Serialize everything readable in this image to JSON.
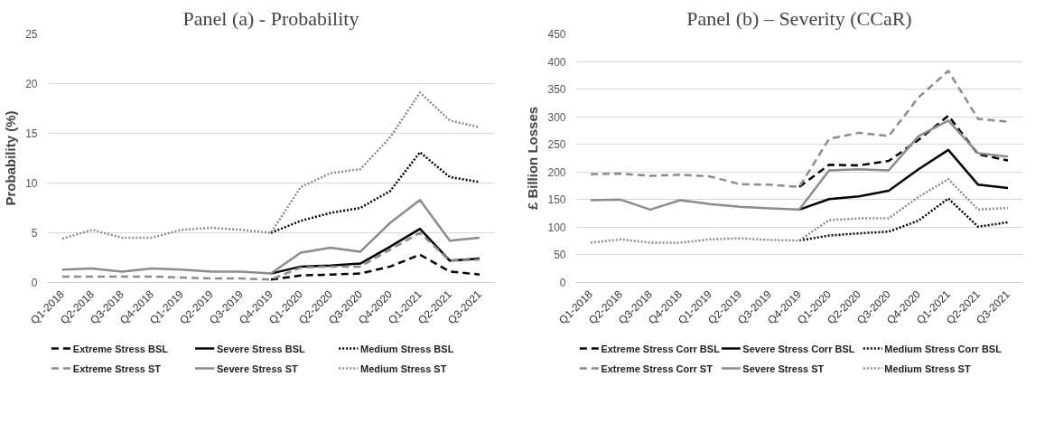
{
  "chart_data": [
    {
      "type": "line",
      "title": "Panel (a) - Probability",
      "ylabel": "Probability (%)",
      "categories": [
        "Q1-2018",
        "Q2-2018",
        "Q3-2018",
        "Q4-2018",
        "Q1-2019",
        "Q2-2019",
        "Q3-2019",
        "Q4-2019",
        "Q1-2020",
        "Q2-2020",
        "Q3-2020",
        "Q4-2020",
        "Q1-2021",
        "Q2-2021",
        "Q3-2021"
      ],
      "ylim": [
        0,
        25
      ],
      "yticks": [
        0,
        5,
        10,
        15,
        20,
        25
      ],
      "grid": "y",
      "legend": "bottom",
      "series": [
        {
          "name": "Extreme Stress BSL",
          "color": "#000000",
          "line_style": "dashed",
          "values": [
            null,
            null,
            null,
            null,
            null,
            null,
            null,
            0.3,
            0.7,
            0.8,
            0.9,
            1.6,
            2.8,
            1.1,
            0.8
          ]
        },
        {
          "name": "Severe Stress BSL",
          "color": "#000000",
          "line_style": "solid",
          "values": [
            null,
            null,
            null,
            null,
            null,
            null,
            null,
            0.9,
            1.6,
            1.7,
            1.9,
            3.6,
            5.4,
            2.2,
            2.4
          ]
        },
        {
          "name": "Medium Stress BSL",
          "color": "#000000",
          "line_style": "dotted",
          "values": [
            null,
            null,
            null,
            null,
            null,
            null,
            null,
            5.0,
            6.2,
            7.0,
            7.5,
            9.2,
            13.1,
            10.6,
            10.1
          ]
        },
        {
          "name": "Extreme Stress ST",
          "color": "#8c8c8c",
          "line_style": "dashed",
          "values": [
            0.6,
            0.6,
            0.6,
            0.6,
            0.5,
            0.4,
            0.4,
            0.3,
            1.5,
            1.6,
            1.6,
            3.3,
            5.0,
            2.2,
            2.3
          ]
        },
        {
          "name": "Severe Stress ST",
          "color": "#8c8c8c",
          "line_style": "solid",
          "values": [
            1.3,
            1.4,
            1.1,
            1.4,
            1.3,
            1.1,
            1.1,
            0.9,
            3.0,
            3.5,
            3.1,
            6.0,
            8.3,
            4.2,
            4.5
          ]
        },
        {
          "name": "Medium Stress ST",
          "color": "#8c8c8c",
          "line_style": "dotted",
          "values": [
            4.4,
            5.3,
            4.5,
            4.5,
            5.3,
            5.5,
            5.3,
            5.0,
            9.6,
            11.0,
            11.4,
            14.6,
            19.1,
            16.3,
            15.6
          ]
        }
      ]
    },
    {
      "type": "line",
      "title": "Panel (b) – Severity (CCaR)",
      "ylabel": "£ Billion Losses",
      "categories": [
        "Q1-2018",
        "Q2-2018",
        "Q3-2018",
        "Q4-2018",
        "Q1-2019",
        "Q2-2019",
        "Q3-2019",
        "Q4-2019",
        "Q1-2020",
        "Q2-2020",
        "Q3-2020",
        "Q4-2020",
        "Q1-2021",
        "Q2-2021",
        "Q3-2021"
      ],
      "ylim": [
        0,
        450
      ],
      "yticks": [
        0,
        50,
        100,
        150,
        200,
        250,
        300,
        350,
        400,
        450
      ],
      "grid": "y",
      "legend": "bottom",
      "series": [
        {
          "name": "Extreme Stress Corr BSL",
          "color": "#000000",
          "line_style": "dashed",
          "values": [
            null,
            null,
            null,
            null,
            null,
            null,
            null,
            173,
            213,
            212,
            220,
            258,
            302,
            232,
            221
          ]
        },
        {
          "name": "Severe Stress Corr BSL",
          "color": "#000000",
          "line_style": "solid",
          "values": [
            null,
            null,
            null,
            null,
            null,
            null,
            null,
            132,
            151,
            156,
            166,
            205,
            240,
            177,
            171
          ]
        },
        {
          "name": "Medium Stress Corr BSL",
          "color": "#000000",
          "line_style": "dotted",
          "values": [
            null,
            null,
            null,
            null,
            null,
            null,
            null,
            76,
            85,
            89,
            92,
            112,
            152,
            101,
            109
          ]
        },
        {
          "name": "Extreme Stress Corr ST",
          "color": "#8c8c8c",
          "line_style": "dashed",
          "values": [
            196,
            197,
            193,
            195,
            192,
            178,
            177,
            173,
            260,
            271,
            265,
            335,
            383,
            296,
            291
          ]
        },
        {
          "name": "Severe Stress ST",
          "color": "#8c8c8c",
          "line_style": "solid",
          "values": [
            149,
            150,
            132,
            149,
            142,
            137,
            134,
            132,
            203,
            205,
            203,
            265,
            293,
            234,
            228
          ]
        },
        {
          "name": "Medium Stress ST",
          "color": "#8c8c8c",
          "line_style": "dotted",
          "values": [
            72,
            78,
            72,
            72,
            78,
            80,
            77,
            76,
            113,
            116,
            116,
            155,
            187,
            132,
            135
          ]
        }
      ]
    }
  ]
}
